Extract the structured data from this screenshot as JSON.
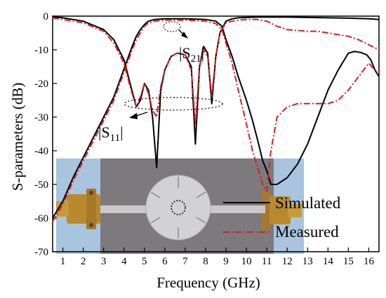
{
  "chart_data": {
    "type": "line",
    "title": "",
    "xlabel": "Frequency (GHz)",
    "ylabel": "S-parameters (dB)",
    "xlim": [
      0.5,
      16.5
    ],
    "ylim": [
      -70,
      0
    ],
    "x_ticks": [
      "1",
      "2",
      "3",
      "4",
      "5",
      "6",
      "7",
      "8",
      "9",
      "10",
      "11",
      "12",
      "13",
      "14",
      "15",
      "16"
    ],
    "y_ticks": [
      "0",
      "-10",
      "-20",
      "-30",
      "-40",
      "-50",
      "-60",
      "-70"
    ],
    "grid": false,
    "legend_position": "lower-right",
    "inset": "photograph of the fabricated circular-patch filter with SMA connectors (lower-left)",
    "annotations": [
      {
        "text": "|S21|",
        "target_x": 7.2,
        "target_y": -3
      },
      {
        "text": "|S11|",
        "target_x": 5.0,
        "target_y": -28
      }
    ],
    "series": [
      {
        "name": "Simulated",
        "param": "S21",
        "color": "#000000",
        "dash": "solid",
        "x": [
          0.5,
          1,
          1.5,
          2,
          2.5,
          3,
          3.5,
          3.8,
          4.1,
          4.4,
          4.6,
          4.8,
          5.0,
          5.2,
          5.5,
          6,
          6.5,
          7,
          7.5,
          8,
          8.5,
          8.8,
          9.0,
          9.3,
          9.6,
          10,
          10.3,
          10.6,
          10.8,
          11.0,
          11.2,
          11.5,
          12,
          12.5,
          13,
          13.5,
          14,
          14.5,
          14.8,
          15,
          15.3,
          15.6,
          15.9,
          16.1,
          16.3,
          16.5
        ],
        "y": [
          -60,
          -55,
          -48,
          -42,
          -36,
          -30,
          -24,
          -19,
          -14,
          -9,
          -6,
          -4,
          -2.5,
          -1.5,
          -1,
          -0.8,
          -0.8,
          -0.8,
          -0.9,
          -1,
          -1.5,
          -3,
          -7,
          -12,
          -18,
          -25,
          -31,
          -38,
          -43,
          -46,
          -50,
          -50,
          -48,
          -44,
          -38,
          -30,
          -22,
          -16,
          -13,
          -11,
          -10.5,
          -10.8,
          -11.5,
          -13,
          -16,
          -18
        ]
      },
      {
        "name": "Simulated",
        "param": "S11",
        "color": "#000000",
        "dash": "solid",
        "x": [
          0.5,
          1,
          2,
          3,
          3.5,
          4,
          4.3,
          4.6,
          4.8,
          5.0,
          5.2,
          5.4,
          5.6,
          5.8,
          6.0,
          6.3,
          6.6,
          7.0,
          7.3,
          7.5,
          7.7,
          7.9,
          8.1,
          8.3,
          8.5,
          8.7,
          9.0,
          9.3,
          9.6,
          10,
          10.5,
          11,
          12,
          13,
          14,
          15,
          16,
          16.5
        ],
        "y": [
          -0.2,
          -0.5,
          -1.5,
          -4,
          -7,
          -13,
          -20,
          -27,
          -25,
          -20,
          -22,
          -30,
          -45,
          -22,
          -16,
          -12,
          -11,
          -11.5,
          -15,
          -38,
          -15,
          -9,
          -11,
          -26,
          -12,
          -5,
          -1.5,
          -0.8,
          -0.5,
          -0.4,
          -0.3,
          -0.3,
          -0.3,
          -0.4,
          -0.5,
          -0.6,
          -0.8,
          -1
        ]
      },
      {
        "name": "Measured",
        "param": "S21",
        "color": "#d42020",
        "dash": "dashdot",
        "x": [
          0.5,
          1,
          1.5,
          2,
          2.5,
          3,
          3.5,
          3.8,
          4.1,
          4.4,
          4.6,
          4.8,
          5.0,
          5.2,
          5.5,
          6,
          6.5,
          7,
          7.5,
          8,
          8.5,
          8.8,
          9.0,
          9.3,
          9.6,
          10,
          10.3,
          10.6,
          10.8,
          11.0,
          11.2,
          11.5,
          12,
          12.5,
          13,
          13.5,
          14,
          14.5,
          15,
          15.5,
          16,
          16.3,
          16.5
        ],
        "y": [
          -61,
          -56,
          -49,
          -43,
          -37,
          -31,
          -25,
          -20,
          -15,
          -10,
          -7,
          -5,
          -3,
          -2,
          -1.5,
          -1.2,
          -1.2,
          -1.2,
          -1.3,
          -1.5,
          -2.2,
          -4,
          -8,
          -14,
          -22,
          -32,
          -40,
          -46,
          -50,
          -52,
          -40,
          -30,
          -27,
          -26,
          -26,
          -26,
          -26,
          -25,
          -22,
          -18,
          -14,
          -16,
          -16
        ]
      },
      {
        "name": "Measured",
        "param": "S11",
        "color": "#d42020",
        "dash": "dashdot",
        "x": [
          0.5,
          1,
          2,
          3,
          3.5,
          4,
          4.3,
          4.6,
          4.8,
          5.0,
          5.2,
          5.4,
          5.6,
          5.8,
          6.0,
          6.3,
          6.6,
          7.0,
          7.3,
          7.5,
          7.7,
          7.9,
          8.1,
          8.3,
          8.5,
          8.7,
          9.0,
          9.3,
          9.6,
          10,
          10.5,
          11,
          11.5,
          12,
          13,
          13.5,
          14,
          14.5,
          15,
          15.5,
          16,
          16.5
        ],
        "y": [
          -0.5,
          -1,
          -2,
          -4.5,
          -8,
          -14,
          -21,
          -27,
          -24,
          -20,
          -23,
          -28,
          -30,
          -21,
          -16,
          -12,
          -11,
          -11.5,
          -16,
          -32,
          -15,
          -10,
          -12,
          -24,
          -12,
          -5,
          -2,
          -1.5,
          -1.2,
          -1,
          -1,
          -1.5,
          -3,
          -4,
          -4.5,
          -4.5,
          -5,
          -5.5,
          -6,
          -7,
          -8.5,
          -10
        ]
      }
    ]
  }
}
